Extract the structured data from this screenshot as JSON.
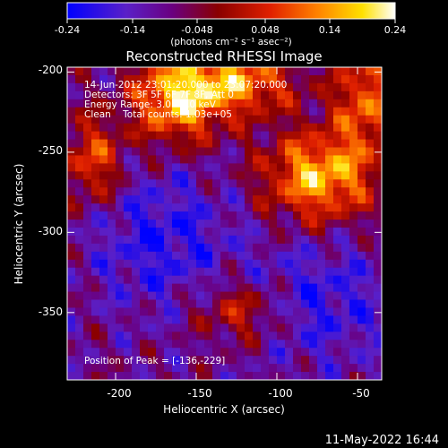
{
  "colorbar": {
    "ticks": [
      "-0.24",
      "-0.14",
      "-0.048",
      "0.048",
      "0.14",
      "0.24"
    ],
    "min": -0.24,
    "max": 0.24,
    "units": "(photons cm⁻² s⁻¹ asec⁻²)"
  },
  "chart_data": {
    "type": "heatmap",
    "title": "Reconstructed RHESSI Image",
    "xlabel": "Heliocentric X (arcsec)",
    "ylabel": "Heliocentric Y (arcsec)",
    "xlim": [
      -230,
      -35
    ],
    "ylim": [
      -392,
      -197
    ],
    "x_ticks": [
      -200,
      -150,
      -100,
      -50
    ],
    "y_ticks": [
      -200,
      -250,
      -300,
      -350
    ],
    "colormap": "rhessi-blue-purple-red-yellow-white",
    "annotations": [
      "14-Jun-2012 23:01:20.000 to 23:07:20.000",
      "Detectors: 3F 5F 6F 7F 8F, Att 0",
      "Energy Range: 3.0 - 6.0 keV",
      "Clean    Total counts: 1.03e+05"
    ],
    "peak_label": "Position of Peak = [-136,-229]",
    "peak": [
      -136,
      -229
    ]
  },
  "footer": {
    "date": "11-May-2022 16:44"
  }
}
